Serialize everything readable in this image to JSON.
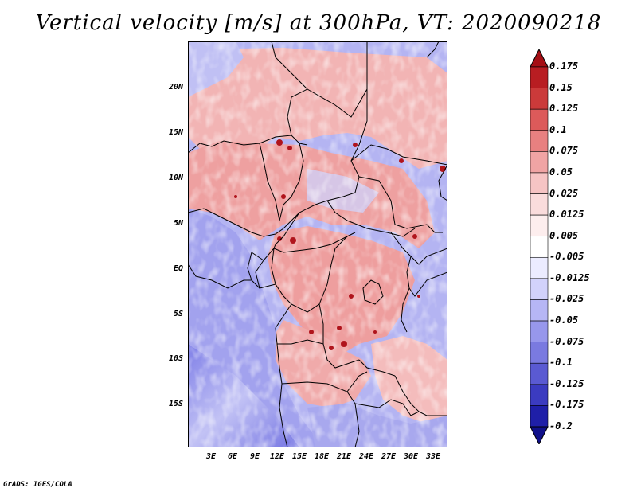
{
  "title": "Vertical velocity [m/s] at 300hPa, VT: 2020090218",
  "credit": "GrADS: IGES/COLA",
  "lat_labels": [
    "20N",
    "15N",
    "10N",
    "5N",
    "EQ",
    "5S",
    "10S",
    "15S"
  ],
  "lon_labels": [
    "3E",
    "6E",
    "9E",
    "12E",
    "15E",
    "18E",
    "21E",
    "24E",
    "27E",
    "30E",
    "33E"
  ],
  "colorbar": {
    "labels": [
      "0.175",
      "0.15",
      "0.125",
      "0.1",
      "0.075",
      "0.05",
      "0.025",
      "0.0125",
      "0.005",
      "-0.005",
      "-0.0125",
      "-0.025",
      "-0.05",
      "-0.075",
      "-0.1",
      "-0.125",
      "-0.175",
      "-0.2"
    ],
    "colors": [
      "#a50f15",
      "#b81d22",
      "#cb3a3a",
      "#dc5a5a",
      "#e88080",
      "#f0a4a4",
      "#f6c4c4",
      "#fadcdc",
      "#fdeeee",
      "#ffffff",
      "#ececff",
      "#d2d2fb",
      "#b6b6f5",
      "#9797ec",
      "#7a7ae0",
      "#5a5ad2",
      "#3b3bc0",
      "#1f1fa8",
      "#10108a"
    ]
  }
}
